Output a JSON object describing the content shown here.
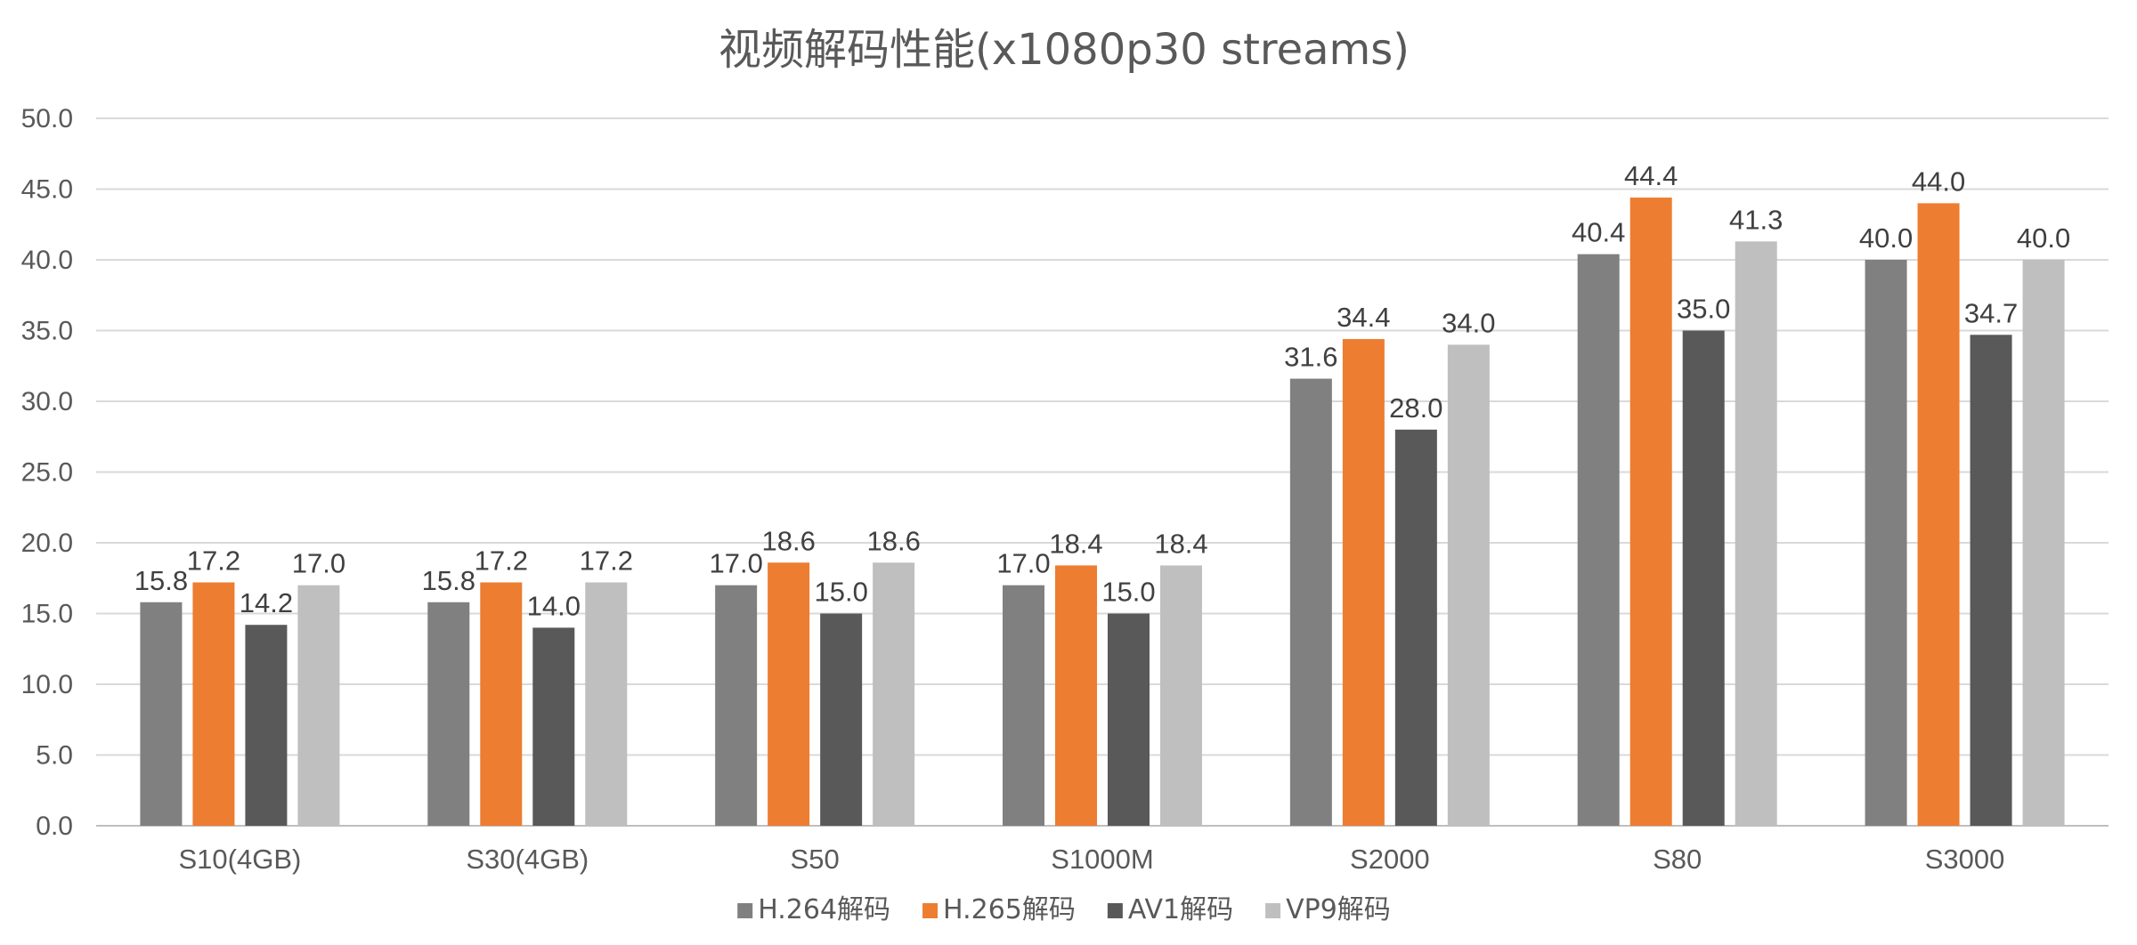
{
  "chart_data": {
    "type": "bar",
    "title": "视频解码性能(x1080p30 streams)",
    "xlabel": "",
    "ylabel": "",
    "ylim": [
      0,
      50
    ],
    "yticks": [
      "0.0",
      "5.0",
      "10.0",
      "15.0",
      "20.0",
      "25.0",
      "30.0",
      "35.0",
      "40.0",
      "45.0",
      "50.0"
    ],
    "grid": true,
    "legend_position": "bottom",
    "categories": [
      "S10(4GB)",
      "S30(4GB)",
      "S50",
      "S1000M",
      "S2000",
      "S80",
      "S3000"
    ],
    "series": [
      {
        "name": "H.264解码",
        "color": "#808080",
        "values": [
          15.8,
          15.8,
          17.0,
          17.0,
          31.6,
          40.4,
          40.0
        ],
        "labels": [
          "15.8",
          "15.8",
          "17.0",
          "17.0",
          "31.6",
          "40.4",
          "40.0"
        ]
      },
      {
        "name": "H.265解码",
        "color": "#ed7d31",
        "values": [
          17.2,
          17.2,
          18.6,
          18.4,
          34.4,
          44.4,
          44.0
        ],
        "labels": [
          "17.2",
          "17.2",
          "18.6",
          "18.4",
          "34.4",
          "44.4",
          "44.0"
        ]
      },
      {
        "name": "AV1解码",
        "color": "#595959",
        "values": [
          14.2,
          14.0,
          15.0,
          15.0,
          28.0,
          35.0,
          34.7
        ],
        "labels": [
          "14.2",
          "14.0",
          "15.0",
          "15.0",
          "28.0",
          "35.0",
          "34.7"
        ]
      },
      {
        "name": "VP9解码",
        "color": "#bfbfbf",
        "values": [
          17.0,
          17.2,
          18.6,
          18.4,
          34.0,
          41.3,
          40.0
        ],
        "labels": [
          "17.0",
          "17.2",
          "18.6",
          "18.4",
          "34.0",
          "41.3",
          "40.0"
        ]
      }
    ]
  }
}
